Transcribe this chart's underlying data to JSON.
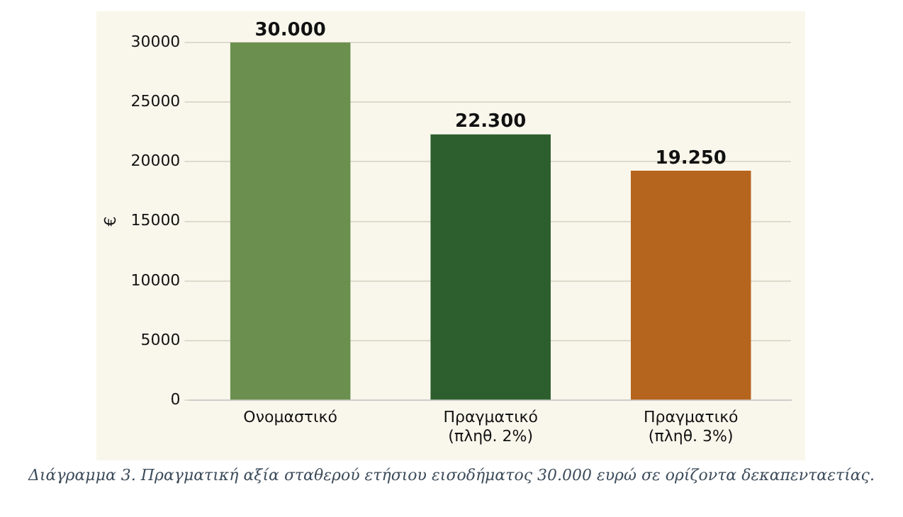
{
  "chart_data": {
    "type": "bar",
    "ylabel": "€",
    "categories": [
      "Ονομαστικό",
      "Πραγματικό\n(πληθ. 2%)",
      "Πραγματικό\n(πληθ. 3%)"
    ],
    "values": [
      30000,
      22300,
      19250
    ],
    "colors": [
      "#6b8f4e",
      "#2d5f2e",
      "#b5651e"
    ],
    "value_labels": [
      "30.000",
      "22.300",
      "19.250"
    ],
    "ylim": [
      0,
      30000
    ],
    "yticks": [
      0,
      5000,
      10000,
      15000,
      20000,
      25000,
      30000
    ],
    "grid": "y",
    "annotations": [
      "Διάγραμμα 3. Πραγματική αξία σταθερού ετήσιου εισοδήματος 30.000 ευρώ σε ορίζοντα δεκαπενταετίας."
    ]
  }
}
